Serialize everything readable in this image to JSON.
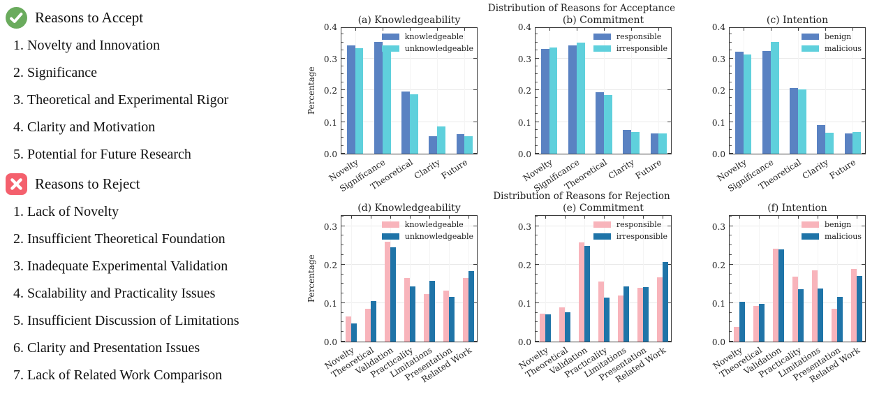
{
  "left_panel": {
    "accept": {
      "title": "Reasons to Accept",
      "items": [
        "Novelty and Innovation",
        "Significance",
        "Theoretical and Experimental Rigor",
        "Clarity and Motivation",
        "Potential for Future Research"
      ]
    },
    "reject": {
      "title": "Reasons to Reject",
      "items": [
        "Lack of Novelty",
        "Insufficient Theoretical Foundation",
        "Inadequate Experimental Validation",
        "Scalability and Practicality Issues",
        "Insufficient Discussion of Limitations",
        "Clarity and Presentation Issues",
        "Lack of Related Work Comparison"
      ]
    },
    "colors": {
      "accept_icon": "#6aab5d",
      "reject_icon": "#f4606d"
    }
  },
  "chart_data": [
    {
      "type": "bar",
      "title": "Distribution of Reasons for Acceptance",
      "ylabel": "Percentage",
      "ylim": [
        0,
        0.4
      ],
      "yticks": [
        0.0,
        0.1,
        0.2,
        0.3,
        0.4
      ],
      "grid": true,
      "legend_position": "upper right",
      "colors": [
        "#5a82c2",
        "#5fd0dc"
      ],
      "categories": [
        "Novelty",
        "Significance",
        "Theoretical",
        "Clarity",
        "Future"
      ],
      "subplots": [
        {
          "title": "(a) Knowledgeability",
          "series": [
            {
              "name": "knowledgeable",
              "values": [
                0.34,
                0.352,
                0.195,
                0.054,
                0.061
              ]
            },
            {
              "name": "unknowledgeable",
              "values": [
                0.333,
                0.34,
                0.186,
                0.085,
                0.055
              ]
            }
          ]
        },
        {
          "title": "(b) Commitment",
          "series": [
            {
              "name": "responsible",
              "values": [
                0.33,
                0.34,
                0.193,
                0.075,
                0.064
              ]
            },
            {
              "name": "irresponsible",
              "values": [
                0.335,
                0.35,
                0.185,
                0.068,
                0.063
              ]
            }
          ]
        },
        {
          "title": "(c) Intention",
          "series": [
            {
              "name": "benign",
              "values": [
                0.32,
                0.323,
                0.206,
                0.09,
                0.063
              ]
            },
            {
              "name": "malicious",
              "values": [
                0.313,
                0.352,
                0.202,
                0.067,
                0.068
              ]
            }
          ]
        }
      ]
    },
    {
      "type": "bar",
      "title": "Distribution of Reasons for Rejection",
      "ylabel": "Percentage",
      "ylim": [
        0,
        0.33
      ],
      "yticks": [
        0.0,
        0.1,
        0.2,
        0.3
      ],
      "grid": true,
      "legend_position": "upper right",
      "colors": [
        "#f8b4bb",
        "#1f74a8"
      ],
      "categories": [
        "Novelty",
        "Theoretical",
        "Validation",
        "Practicality",
        "Limitations",
        "Presentation",
        "Related Work"
      ],
      "subplots": [
        {
          "title": "(d) Knowledgeability",
          "series": [
            {
              "name": "knowledgeable",
              "values": [
                0.066,
                0.085,
                0.26,
                0.165,
                0.124,
                0.133,
                0.165
              ]
            },
            {
              "name": "unknowledgeable",
              "values": [
                0.048,
                0.105,
                0.245,
                0.143,
                0.158,
                0.116,
                0.184
              ]
            }
          ]
        },
        {
          "title": "(e) Commitment",
          "series": [
            {
              "name": "responsible",
              "values": [
                0.072,
                0.089,
                0.257,
                0.156,
                0.12,
                0.139,
                0.167
              ]
            },
            {
              "name": "irresponsible",
              "values": [
                0.07,
                0.077,
                0.248,
                0.115,
                0.143,
                0.141,
                0.206
              ]
            }
          ]
        },
        {
          "title": "(f) Intention",
          "series": [
            {
              "name": "benign",
              "values": [
                0.038,
                0.092,
                0.242,
                0.169,
                0.185,
                0.086,
                0.189
              ]
            },
            {
              "name": "malicious",
              "values": [
                0.104,
                0.098,
                0.24,
                0.136,
                0.137,
                0.116,
                0.17
              ]
            }
          ]
        }
      ]
    }
  ]
}
